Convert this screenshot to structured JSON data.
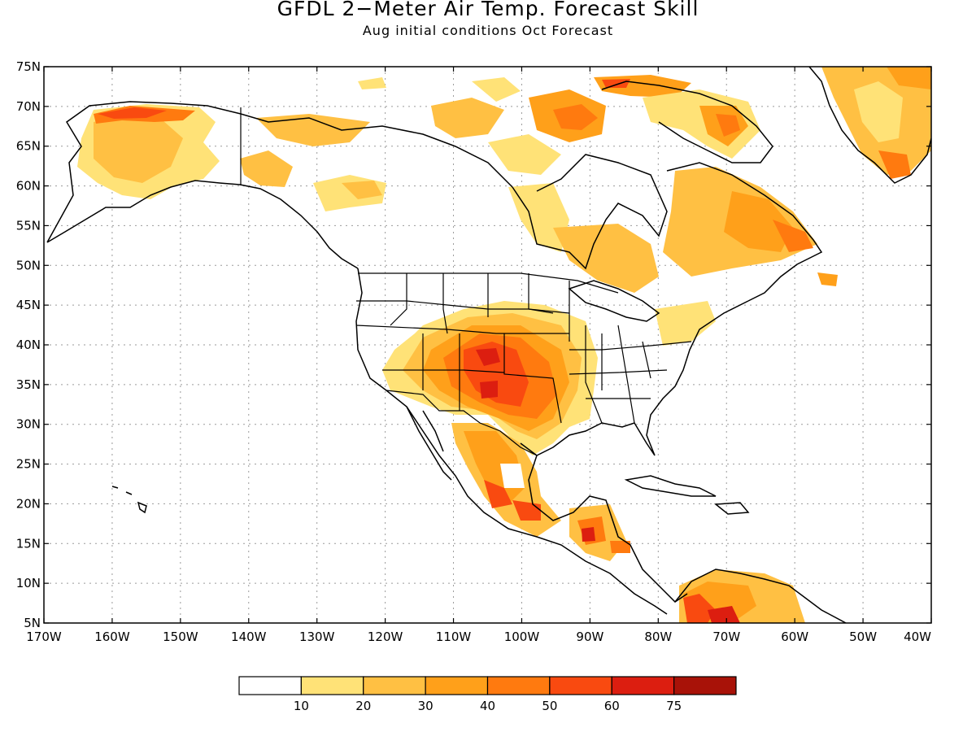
{
  "title": "GFDL 2−Meter Air Temp. Forecast Skill",
  "subtitle": "Aug initial conditions  Oct Forecast",
  "map": {
    "lon_range": [
      -170,
      -40
    ],
    "lat_range": [
      5,
      75
    ],
    "lat_labels": [
      "75N",
      "70N",
      "65N",
      "60N",
      "55N",
      "50N",
      "45N",
      "40N",
      "35N",
      "30N",
      "25N",
      "20N",
      "15N",
      "10N",
      "5N"
    ],
    "lon_labels": [
      "170W",
      "160W",
      "150W",
      "140W",
      "130W",
      "120W",
      "110W",
      "100W",
      "90W",
      "80W",
      "70W",
      "60W",
      "50W",
      "40W"
    ],
    "gridlines": "dotted",
    "skill_regions": [
      {
        "region": "Alaska",
        "level": "10-30, pockets 40-60 on north slope"
      },
      {
        "region": "Southwest US / Texas",
        "level": "40-60"
      },
      {
        "region": "Central Mexico",
        "level": "30-60"
      },
      {
        "region": "Central America",
        "level": "30-60"
      },
      {
        "region": "Northern South America",
        "level": "40-75"
      },
      {
        "region": "Canadian Arctic Archipelago",
        "level": "30-50"
      },
      {
        "region": "Greenland",
        "level": "10-40"
      },
      {
        "region": "Quebec / Labrador",
        "level": "20-50"
      }
    ]
  },
  "colorbar": {
    "labels": [
      "10",
      "20",
      "30",
      "40",
      "50",
      "60",
      "75"
    ],
    "colors": [
      "#ffffff",
      "#ffe277",
      "#ffc043",
      "#ffa01a",
      "#ff7a0f",
      "#f94a10",
      "#dc1e10",
      "#a81208"
    ]
  },
  "palette": {
    "white": "#ffffff",
    "yellow": "#ffe277",
    "light_orange": "#ffc043",
    "orange": "#ffa01a",
    "dark_orange": "#ff7a0f",
    "red_orange": "#f94a10",
    "red": "#dc1e10",
    "dark_red": "#a81208"
  }
}
